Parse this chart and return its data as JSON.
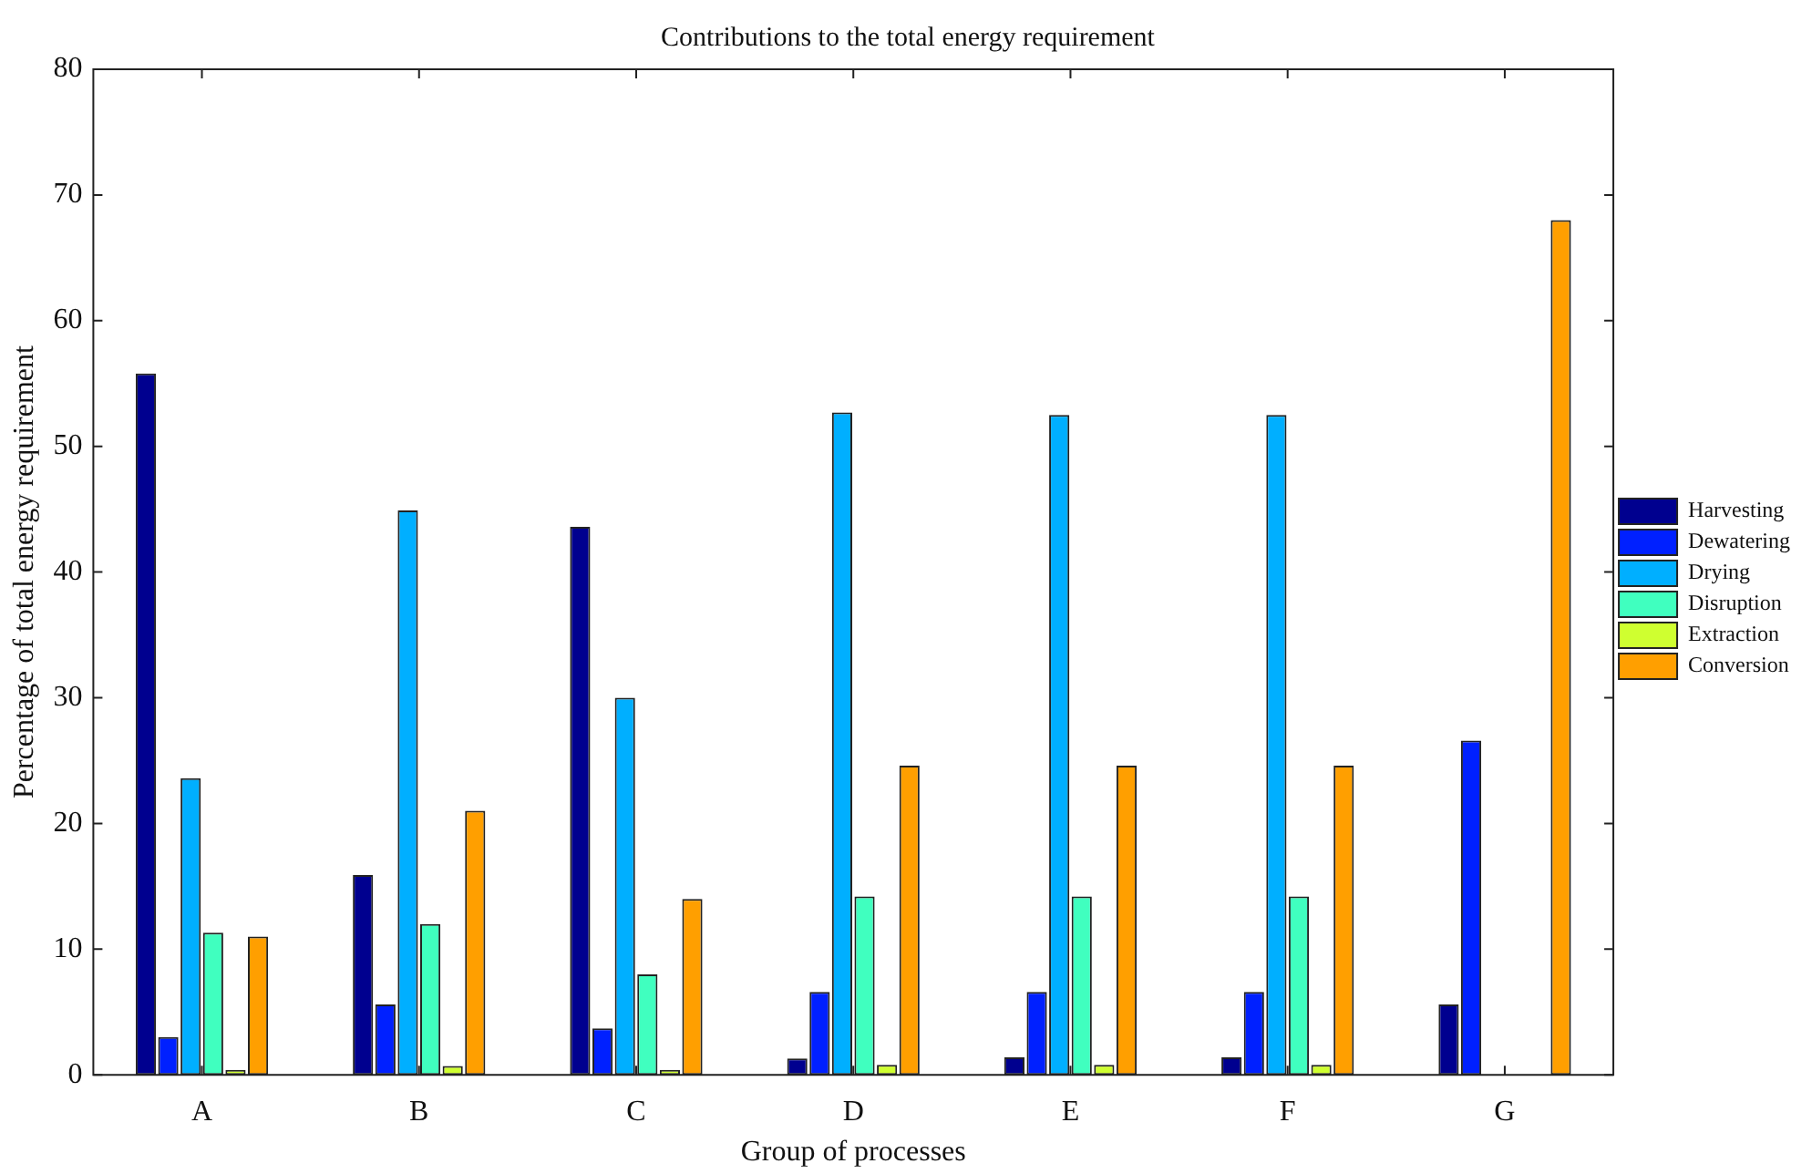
{
  "chart_data": {
    "type": "bar",
    "title": "Contributions to the total energy requirement",
    "xlabel": "Group of processes",
    "ylabel": "Percentage of total energy requirement",
    "categories": [
      "A",
      "B",
      "C",
      "D",
      "E",
      "F",
      "G"
    ],
    "series": [
      {
        "name": "Harvesting",
        "color": "#00008f",
        "values": [
          55.8,
          15.9,
          43.6,
          1.3,
          1.4,
          1.4,
          5.6
        ]
      },
      {
        "name": "Dewatering",
        "color": "#0020ff",
        "values": [
          3.0,
          5.6,
          3.7,
          6.6,
          6.6,
          6.6,
          26.6
        ]
      },
      {
        "name": "Drying",
        "color": "#00afff",
        "values": [
          23.6,
          44.9,
          30.0,
          52.7,
          52.5,
          52.5,
          0
        ]
      },
      {
        "name": "Disruption",
        "color": "#40ffbf",
        "values": [
          11.3,
          12.0,
          8.0,
          14.2,
          14.2,
          14.2,
          0
        ]
      },
      {
        "name": "Extraction",
        "color": "#cfff30",
        "values": [
          0.4,
          0.7,
          0.4,
          0.8,
          0.8,
          0.8,
          0
        ]
      },
      {
        "name": "Conversion",
        "color": "#ff9f00",
        "values": [
          11.0,
          21.0,
          14.0,
          24.6,
          24.6,
          24.6,
          68.0
        ]
      }
    ],
    "ylim": [
      0,
      80
    ],
    "yticks": [
      0,
      10,
      20,
      30,
      40,
      50,
      60,
      70,
      80
    ],
    "legend": "right"
  }
}
